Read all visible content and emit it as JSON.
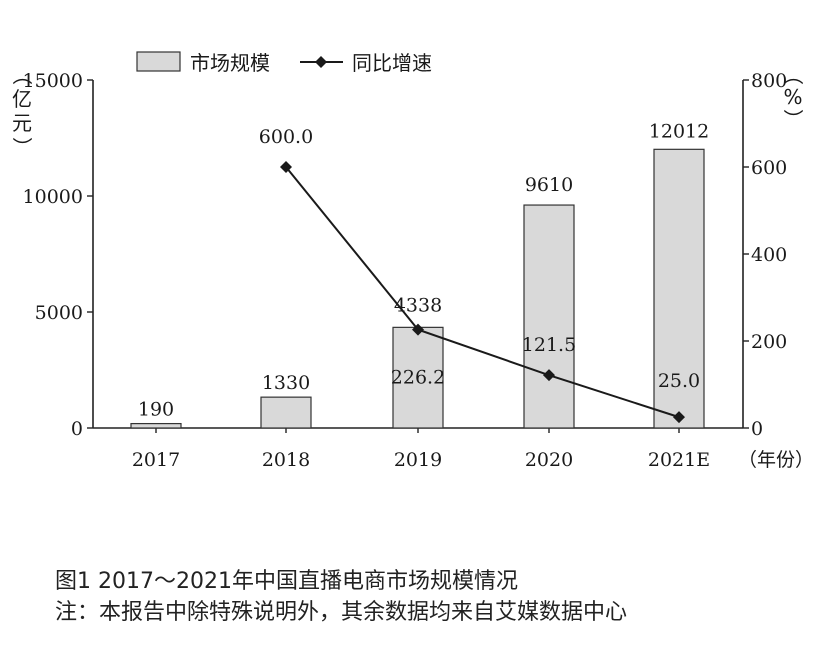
{
  "chart_data": {
    "type": "bar+line",
    "categories": [
      "2017",
      "2018",
      "2019",
      "2020",
      "2021E"
    ],
    "series": [
      {
        "name": "市场规模",
        "type": "bar",
        "axis": "left",
        "values": [
          190,
          1330,
          4338,
          9610,
          12012
        ],
        "labels": [
          "190",
          "1330",
          "4338",
          "9610",
          "12012"
        ],
        "color": "#d9d9d9"
      },
      {
        "name": "同比增速",
        "type": "line",
        "axis": "right",
        "values": [
          null,
          600.0,
          226.2,
          121.5,
          25.0
        ],
        "labels": [
          "",
          "600.0",
          "226.2",
          "121.5",
          "25.0"
        ],
        "color": "#1a1a1a"
      }
    ],
    "y_left": {
      "label": "（亿元）",
      "ticks": [
        0,
        5000,
        10000,
        15000
      ],
      "tick_labels": [
        "0",
        "5000",
        "10000",
        "15000"
      ],
      "ylim": [
        0,
        15000
      ]
    },
    "y_right": {
      "label": "（%）",
      "ticks": [
        0,
        200,
        400,
        600,
        800
      ],
      "tick_labels": [
        "0",
        "200",
        "400",
        "600",
        "800"
      ],
      "ylim": [
        0,
        800
      ]
    },
    "x_unit_label": "（年份）",
    "legend": {
      "placement": "top-center"
    },
    "grid": false
  },
  "caption": {
    "title": "图1 2017～2021年中国直播电商市场规模情况",
    "note": "注：本报告中除特殊说明外，其余数据均来自艾媒数据中心"
  }
}
